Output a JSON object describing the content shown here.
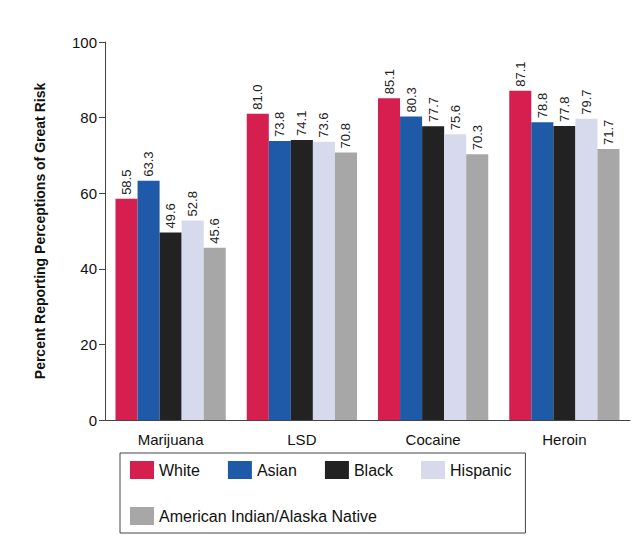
{
  "chart_data": {
    "type": "bar",
    "y_label": "Percent Reporting Perceptions of Great Risk",
    "categories": [
      "Marijuana",
      "LSD",
      "Cocaine",
      "Heroin"
    ],
    "series": [
      {
        "name": "White",
        "color": "#d41f4f",
        "values": [
          58.5,
          81.0,
          85.1,
          87.1
        ],
        "value_labels": [
          "58.5",
          "81.0",
          "85.1",
          "87.1"
        ]
      },
      {
        "name": "Asian",
        "color": "#1f5aa8",
        "values": [
          63.3,
          73.8,
          80.3,
          78.8
        ],
        "value_labels": [
          "63.3",
          "73.8",
          "80.3",
          "78.8"
        ]
      },
      {
        "name": "Black",
        "color": "#222222",
        "values": [
          49.6,
          74.1,
          77.7,
          77.8
        ],
        "value_labels": [
          "49.6",
          "74.1",
          "77.7",
          "77.8"
        ]
      },
      {
        "name": "Hispanic",
        "color": "#d7d9ec",
        "values": [
          52.8,
          73.6,
          75.6,
          79.7
        ],
        "value_labels": [
          "52.8",
          "73.6",
          "75.6",
          "79.7"
        ]
      },
      {
        "name": "American Indian/Alaska Native",
        "color": "#a7a7a7",
        "values": [
          45.6,
          70.8,
          70.3,
          71.7
        ],
        "value_labels": [
          "45.6",
          "70.8",
          "70.3",
          "71.7"
        ]
      }
    ],
    "ylim": [
      0,
      100
    ],
    "yticks": [
      0,
      20,
      40,
      60,
      80,
      100
    ],
    "grid": false,
    "legend": "bottom",
    "data_labels": true
  }
}
